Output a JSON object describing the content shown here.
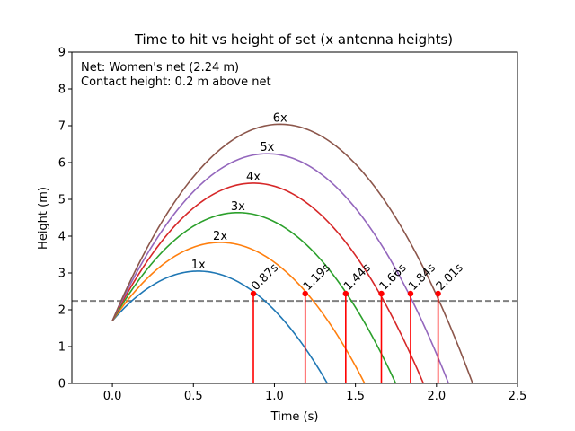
{
  "chart_data": {
    "type": "line",
    "title": "Time to hit vs height of set (x antenna heights)",
    "xlabel": "Time (s)",
    "ylabel": "Height (m)",
    "xlim": [
      -0.25,
      2.5
    ],
    "ylim": [
      0,
      9
    ],
    "x_ticks": [
      "0.0",
      "0.5",
      "1.0",
      "1.5",
      "2.0",
      "2.5"
    ],
    "x_tick_values": [
      0,
      0.5,
      1.0,
      1.5,
      2.0,
      2.5
    ],
    "y_ticks": [
      "0",
      "1",
      "2",
      "3",
      "4",
      "5",
      "6",
      "7",
      "8",
      "9"
    ],
    "y_tick_values": [
      0,
      1,
      2,
      3,
      4,
      5,
      6,
      7,
      8,
      9
    ],
    "grid": false,
    "annotations": [
      "Net: Women's net (2.24 m)",
      "Contact height: 0.2 m above net"
    ],
    "net_line": {
      "y": 2.24,
      "color": "#808080"
    },
    "release_height": 1.7,
    "contact_height": 2.44,
    "series": [
      {
        "label": "1x",
        "peak_time": 0.53,
        "peak_height": 3.05,
        "hit_time": 0.87,
        "hit_label": "0.87s",
        "color": "#1f77b4"
      },
      {
        "label": "2x",
        "peak_time": 0.665,
        "peak_height": 3.83,
        "hit_time": 1.19,
        "hit_label": "1.19s",
        "color": "#ff7f0e"
      },
      {
        "label": "3x",
        "peak_time": 0.775,
        "peak_height": 4.64,
        "hit_time": 1.44,
        "hit_label": "1.44s",
        "color": "#2ca02c"
      },
      {
        "label": "4x",
        "peak_time": 0.87,
        "peak_height": 5.44,
        "hit_time": 1.66,
        "hit_label": "1.66s",
        "color": "#d62728"
      },
      {
        "label": "5x",
        "peak_time": 0.955,
        "peak_height": 6.24,
        "hit_time": 1.84,
        "hit_label": "1.84s",
        "color": "#9467bd"
      },
      {
        "label": "6x",
        "peak_time": 1.035,
        "peak_height": 7.04,
        "hit_time": 2.01,
        "hit_label": "2.01s",
        "color": "#8c564b"
      }
    ],
    "marker_color": "#ff0000"
  }
}
